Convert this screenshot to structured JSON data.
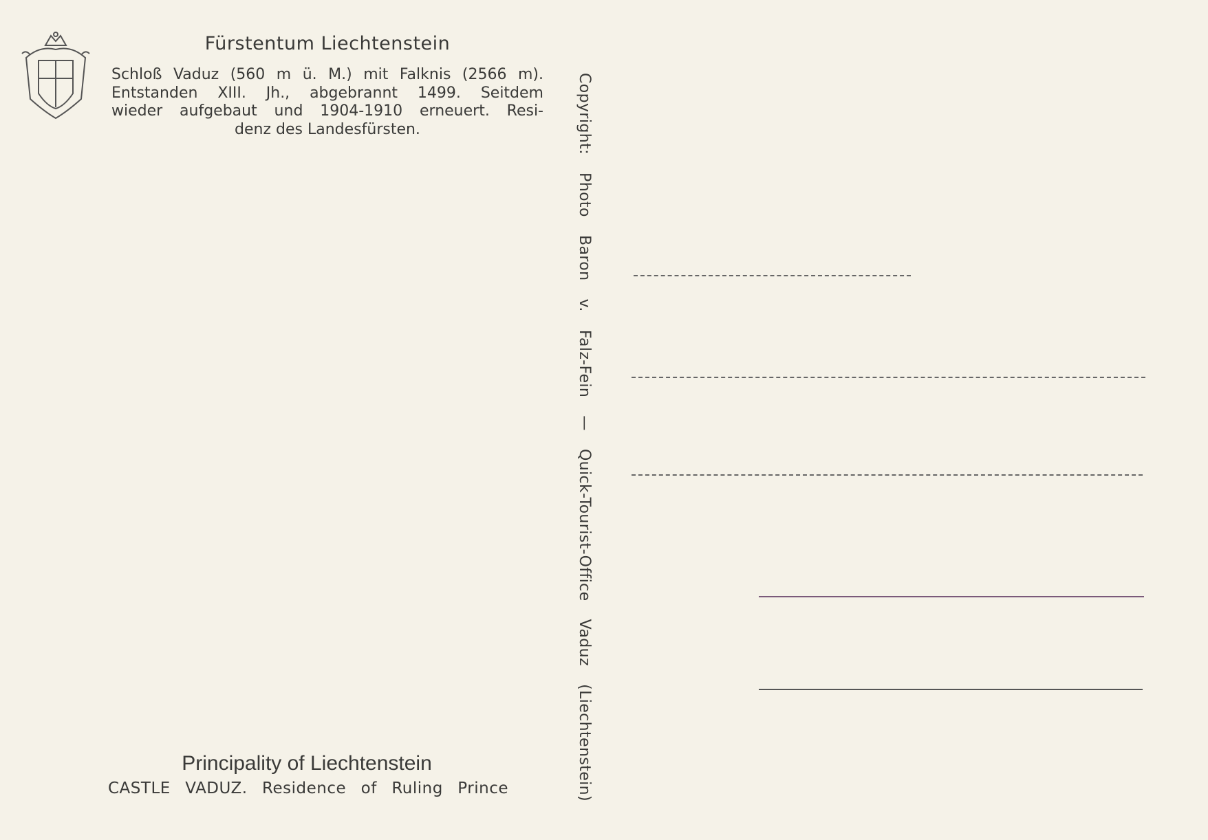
{
  "header": {
    "title": "Fürstentum Liechtenstein",
    "description": [
      "Schloß Vaduz (560 m ü. M.) mit Falknis (2566 m).",
      "Entstanden XIII. Jh., abgebrannt 1499. Seitdem",
      "wieder aufgebaut und 1904-1910 erneuert. Resi-",
      "denz des Landesfürsten."
    ]
  },
  "footer": {
    "title": "Principality of Liechtenstein",
    "subtitle": "CASTLE VADUZ. Residence of Ruling Prince"
  },
  "copyright": "Copyright: Photo Baron v. Falz-Fein — Quick-Tourist-Office Vaduz (Liechtenstein)"
}
